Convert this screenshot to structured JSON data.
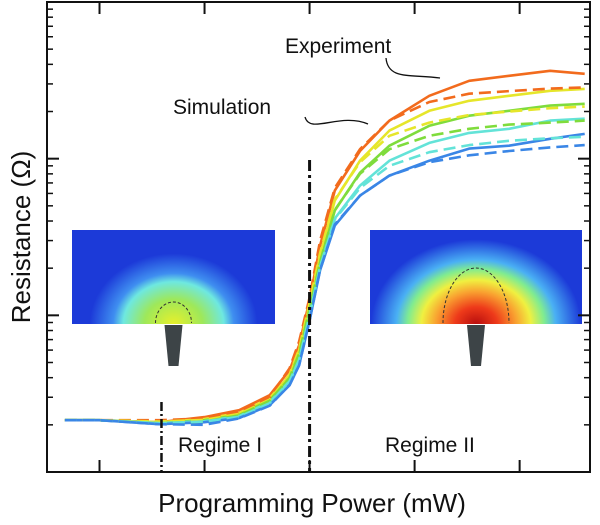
{
  "chart_data": {
    "type": "line",
    "title": "",
    "xlabel": "Programming Power (mW)",
    "ylabel": "Resistance (Ω)",
    "xlim": [
      0.5,
      5.67
    ],
    "ylim": [
      1,
      1000
    ],
    "yscale": "log",
    "grid": false,
    "x": [
      0.67,
      1,
      1.57,
      2,
      2.33,
      2.62,
      2.81,
      2.9,
      3.0,
      3.1,
      3.24,
      3.48,
      3.76,
      4.14,
      4.52,
      4.9,
      5.29,
      5.62
    ],
    "series": [
      {
        "group": "experiment",
        "color": "#f26b1d",
        "style": "solid",
        "values": [
          2.14,
          2.14,
          2.08,
          2.24,
          2.48,
          3.09,
          4.47,
          6.44,
          12.5,
          27.9,
          62.5,
          112,
          175,
          252,
          314,
          338,
          364,
          348
        ]
      },
      {
        "group": "experiment",
        "color": "#e6e62a",
        "style": "solid",
        "values": [
          2.14,
          2.14,
          2.08,
          2.18,
          2.38,
          2.96,
          4.15,
          5.98,
          11.6,
          24.1,
          54,
          97,
          151,
          202,
          234,
          252,
          271,
          279
        ]
      },
      {
        "group": "experiment",
        "color": "#7fdc3c",
        "style": "solid",
        "values": [
          2.14,
          2.14,
          2.05,
          2.14,
          2.31,
          2.87,
          3.97,
          5.56,
          10.8,
          21.8,
          46.7,
          81.4,
          121,
          162,
          188,
          202,
          218,
          224
        ]
      },
      {
        "group": "experiment",
        "color": "#63e3d8",
        "style": "solid",
        "values": [
          2.14,
          2.14,
          2.05,
          2.11,
          2.27,
          2.79,
          3.8,
          5.17,
          10,
          20.5,
          41.5,
          67.3,
          97,
          126,
          146,
          155,
          175,
          180
        ]
      },
      {
        "group": "experiment",
        "color": "#3a86e6",
        "style": "solid",
        "values": [
          2.14,
          2.14,
          2.02,
          2.08,
          2.21,
          2.67,
          3.58,
          4.8,
          9.29,
          19.4,
          37.4,
          58.1,
          78,
          97,
          116,
          121,
          134,
          144
        ]
      },
      {
        "group": "simulation",
        "color": "#f26b1d",
        "style": "dashed",
        "values": [
          2.14,
          2.14,
          2.14,
          2.2,
          2.4,
          3.0,
          4.6,
          6.8,
          13,
          30,
          65,
          115,
          175,
          230,
          260,
          270,
          280,
          285
        ]
      },
      {
        "group": "simulation",
        "color": "#e6e62a",
        "style": "dashed",
        "values": [
          2.14,
          2.14,
          2.1,
          2.15,
          2.35,
          2.9,
          4.2,
          6.1,
          12,
          25,
          55,
          95,
          140,
          170,
          190,
          200,
          210,
          215
        ]
      },
      {
        "group": "simulation",
        "color": "#7fdc3c",
        "style": "dashed",
        "values": [
          2.14,
          2.14,
          2.05,
          2.1,
          2.3,
          2.85,
          4.0,
          5.7,
          11,
          22,
          47,
          80,
          115,
          140,
          155,
          165,
          170,
          175
        ]
      },
      {
        "group": "simulation",
        "color": "#63e3d8",
        "style": "dashed",
        "values": [
          2.14,
          2.14,
          2.05,
          2.1,
          2.25,
          2.75,
          3.8,
          5.2,
          10,
          20.5,
          41,
          65,
          90,
          110,
          122,
          130,
          135,
          138
        ]
      },
      {
        "group": "simulation",
        "color": "#3a86e6",
        "style": "dashed",
        "values": [
          2.14,
          2.14,
          2.02,
          2.0,
          2.2,
          2.65,
          3.6,
          4.8,
          9.3,
          19.5,
          38,
          58,
          78,
          95,
          105,
          112,
          118,
          122
        ]
      }
    ],
    "annotations": {
      "experiment": "Experiment",
      "simulation": "Simulation",
      "regime1": "Regime I",
      "regime2": "Regime II"
    },
    "regime_boundaries_x": [
      1.59,
      3.0
    ],
    "insets": [
      "temperature-map-regime-1",
      "temperature-map-regime-2"
    ]
  }
}
